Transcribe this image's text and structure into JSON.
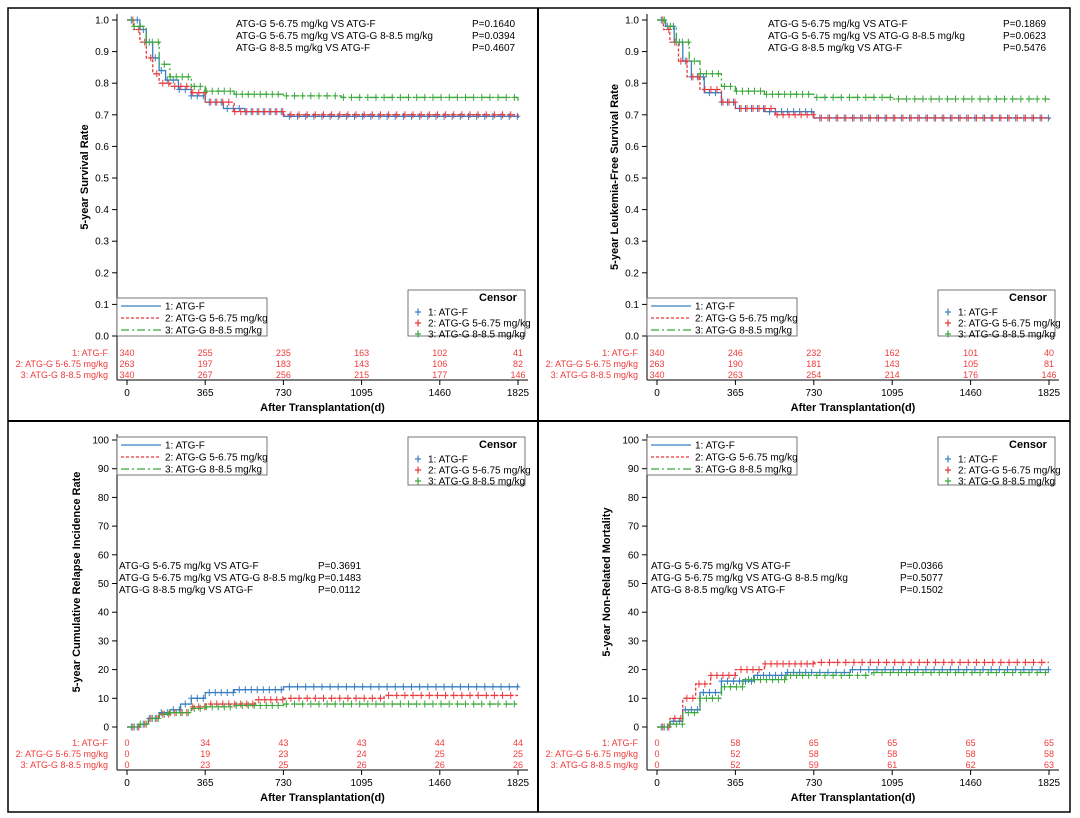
{
  "colors": {
    "ATG-F": "#3a7fc1",
    "ATG-G 5-6.75": "#e8383d",
    "ATG-G 8-8.5": "#3aa83a",
    "risk_table": "#f03a3a"
  },
  "legend_labels": [
    "1: ATG-F",
    "2: ATG-G 5-6.75 mg/kg",
    "3: ATG-G 8-8.5 mg/kg"
  ],
  "censor_title": "Censor",
  "risk_row_labels": [
    "1: ATG-F",
    "2: ATG-G 5-6.75 mg/kg",
    "3: ATG-G 8-8.5 mg/kg"
  ],
  "chart_data": [
    {
      "type": "line",
      "subtype": "kaplan-meier",
      "ylabel": "5-year Survival Rate",
      "xlabel": "After Transplantation(d)",
      "xticks": [
        0,
        365,
        730,
        1095,
        1460,
        1825
      ],
      "yticks": [
        "0.0",
        "0.1",
        "0.2",
        "0.3",
        "0.4",
        "0.5",
        "0.6",
        "0.7",
        "0.8",
        "0.9",
        "1.0"
      ],
      "xlim": [
        0,
        1825
      ],
      "ylim": [
        0,
        1.0
      ],
      "legend": "bottom-left",
      "pvalues": [
        {
          "label": "ATG-G 5-6.75 mg/kg VS ATG-F",
          "p": "P=0.1640"
        },
        {
          "label": "ATG-G 5-6.75 mg/kg VS ATG-G 8-8.5 mg/kg",
          "p": "P=0.0394"
        },
        {
          "label": "ATG-G 8-8.5 mg/kg VS ATG-F",
          "p": "P=0.4607"
        }
      ],
      "risk_table": [
        [
          340,
          255,
          235,
          163,
          102,
          41
        ],
        [
          263,
          197,
          183,
          143,
          106,
          82
        ],
        [
          340,
          267,
          256,
          215,
          177,
          146
        ]
      ],
      "series": [
        {
          "name": "1: ATG-F",
          "points": [
            [
              0,
              1
            ],
            [
              30,
              1
            ],
            [
              60,
              0.97
            ],
            [
              90,
              0.93
            ],
            [
              120,
              0.88
            ],
            [
              150,
              0.84
            ],
            [
              180,
              0.81
            ],
            [
              240,
              0.78
            ],
            [
              300,
              0.76
            ],
            [
              365,
              0.74
            ],
            [
              450,
              0.72
            ],
            [
              550,
              0.71
            ],
            [
              730,
              0.695
            ],
            [
              1825,
              0.69
            ]
          ]
        },
        {
          "name": "2: ATG-G 5-6.75 mg/kg",
          "points": [
            [
              0,
              1
            ],
            [
              30,
              0.97
            ],
            [
              60,
              0.93
            ],
            [
              90,
              0.88
            ],
            [
              120,
              0.83
            ],
            [
              150,
              0.8
            ],
            [
              200,
              0.79
            ],
            [
              300,
              0.77
            ],
            [
              365,
              0.74
            ],
            [
              500,
              0.71
            ],
            [
              730,
              0.7
            ],
            [
              1825,
              0.69
            ]
          ]
        },
        {
          "name": "3: ATG-G 8-8.5 mg/kg",
          "points": [
            [
              0,
              1
            ],
            [
              30,
              0.98
            ],
            [
              90,
              0.93
            ],
            [
              150,
              0.86
            ],
            [
              200,
              0.82
            ],
            [
              300,
              0.79
            ],
            [
              365,
              0.775
            ],
            [
              500,
              0.765
            ],
            [
              730,
              0.76
            ],
            [
              1000,
              0.755
            ],
            [
              1825,
              0.745
            ]
          ]
        }
      ]
    },
    {
      "type": "line",
      "subtype": "kaplan-meier",
      "ylabel": "5-year Leukemia-Free Survival Rate",
      "xlabel": "After Transplantation(d)",
      "xticks": [
        0,
        365,
        730,
        1095,
        1460,
        1825
      ],
      "yticks": [
        "0.0",
        "0.1",
        "0.2",
        "0.3",
        "0.4",
        "0.5",
        "0.6",
        "0.7",
        "0.8",
        "0.9",
        "1.0"
      ],
      "xlim": [
        0,
        1825
      ],
      "ylim": [
        0,
        1.0
      ],
      "legend": "bottom-left",
      "pvalues": [
        {
          "label": "ATG-G 5-6.75 mg/kg VS ATG-F",
          "p": "P=0.1869"
        },
        {
          "label": "ATG-G 5-6.75 mg/kg VS ATG-G 8-8.5 mg/kg",
          "p": "P=0.0623"
        },
        {
          "label": "ATG-G 8-8.5 mg/kg VS ATG-F",
          "p": "P=0.5476"
        }
      ],
      "risk_table": [
        [
          340,
          246,
          232,
          162,
          101,
          40
        ],
        [
          263,
          190,
          181,
          143,
          105,
          81
        ],
        [
          340,
          263,
          254,
          214,
          176,
          146
        ]
      ],
      "series": [
        {
          "name": "1: ATG-F",
          "points": [
            [
              0,
              1
            ],
            [
              40,
              0.98
            ],
            [
              80,
              0.93
            ],
            [
              120,
              0.87
            ],
            [
              160,
              0.82
            ],
            [
              220,
              0.77
            ],
            [
              300,
              0.74
            ],
            [
              365,
              0.72
            ],
            [
              500,
              0.71
            ],
            [
              730,
              0.69
            ],
            [
              1825,
              0.685
            ]
          ]
        },
        {
          "name": "2: ATG-G 5-6.75 mg/kg",
          "points": [
            [
              0,
              1
            ],
            [
              30,
              0.97
            ],
            [
              60,
              0.93
            ],
            [
              100,
              0.87
            ],
            [
              140,
              0.82
            ],
            [
              200,
              0.78
            ],
            [
              300,
              0.74
            ],
            [
              365,
              0.72
            ],
            [
              550,
              0.7
            ],
            [
              730,
              0.69
            ],
            [
              1825,
              0.685
            ]
          ]
        },
        {
          "name": "3: ATG-G 8-8.5 mg/kg",
          "points": [
            [
              0,
              1
            ],
            [
              40,
              0.98
            ],
            [
              90,
              0.93
            ],
            [
              150,
              0.87
            ],
            [
              200,
              0.83
            ],
            [
              300,
              0.79
            ],
            [
              365,
              0.775
            ],
            [
              500,
              0.765
            ],
            [
              730,
              0.755
            ],
            [
              1100,
              0.75
            ],
            [
              1825,
              0.74
            ]
          ]
        }
      ]
    },
    {
      "type": "line",
      "subtype": "cumulative-incidence",
      "ylabel": "5-year Cumulative Relapse Incidence Rate",
      "xlabel": "After Transplantation(d)",
      "xticks": [
        0,
        365,
        730,
        1095,
        1460,
        1825
      ],
      "yticks": [
        "0",
        "10",
        "20",
        "30",
        "40",
        "50",
        "60",
        "70",
        "80",
        "90",
        "100"
      ],
      "xlim": [
        0,
        1825
      ],
      "ylim": [
        0,
        100
      ],
      "legend": "top-left",
      "pvalues": [
        {
          "label": "ATG-G 5-6.75 mg/kg VS ATG-F",
          "p": "P=0.3691"
        },
        {
          "label": "ATG-G 5-6.75 mg/kg VS ATG-G 8-8.5 mg/kg",
          "p": "P=0.1483"
        },
        {
          "label": "ATG-G 8-8.5 mg/kg VS ATG-F",
          "p": "P=0.0112"
        }
      ],
      "risk_table": [
        [
          0,
          34,
          43,
          43,
          44,
          44
        ],
        [
          0,
          19,
          23,
          24,
          25,
          25
        ],
        [
          0,
          23,
          25,
          26,
          26,
          26
        ]
      ],
      "series": [
        {
          "name": "1: ATG-F",
          "points": [
            [
              0,
              0
            ],
            [
              60,
              1
            ],
            [
              100,
              3
            ],
            [
              150,
              5
            ],
            [
              200,
              6
            ],
            [
              250,
              8
            ],
            [
              300,
              10
            ],
            [
              365,
              12
            ],
            [
              500,
              13
            ],
            [
              730,
              14
            ],
            [
              1825,
              14.5
            ]
          ]
        },
        {
          "name": "2: ATG-G 5-6.75 mg/kg",
          "points": [
            [
              0,
              0
            ],
            [
              60,
              1
            ],
            [
              100,
              3
            ],
            [
              150,
              4.5
            ],
            [
              200,
              5
            ],
            [
              300,
              7
            ],
            [
              365,
              8
            ],
            [
              600,
              9.5
            ],
            [
              730,
              10
            ],
            [
              1200,
              11
            ],
            [
              1825,
              11
            ]
          ]
        },
        {
          "name": "3: ATG-G 8-8.5 mg/kg",
          "points": [
            [
              0,
              0
            ],
            [
              60,
              1
            ],
            [
              100,
              3
            ],
            [
              150,
              4.5
            ],
            [
              200,
              5
            ],
            [
              300,
              6.5
            ],
            [
              365,
              7
            ],
            [
              500,
              7.5
            ],
            [
              730,
              8
            ],
            [
              1825,
              8
            ]
          ]
        }
      ]
    },
    {
      "type": "line",
      "subtype": "cumulative-incidence",
      "ylabel": "5-year Non-Related Mortality",
      "xlabel": "After Transplantation(d)",
      "xticks": [
        0,
        365,
        730,
        1095,
        1460,
        1825
      ],
      "yticks": [
        "0",
        "10",
        "20",
        "30",
        "40",
        "50",
        "60",
        "70",
        "80",
        "90",
        "100"
      ],
      "xlim": [
        0,
        1825
      ],
      "ylim": [
        0,
        100
      ],
      "legend": "top-left",
      "pvalues": [
        {
          "label": "ATG-G 5-6.75 mg/kg VS ATG-F",
          "p": "P=0.0366"
        },
        {
          "label": "ATG-G 5-6.75 mg/kg VS ATG-G 8-8.5 mg/kg",
          "p": "P=0.5077"
        },
        {
          "label": "ATG-G 8-8.5 mg/kg VS ATG-F",
          "p": "P=0.1502"
        }
      ],
      "risk_table": [
        [
          0,
          58,
          65,
          65,
          65,
          65
        ],
        [
          0,
          52,
          58,
          58,
          58,
          58
        ],
        [
          0,
          52,
          59,
          61,
          62,
          63
        ]
      ],
      "series": [
        {
          "name": "1: ATG-F",
          "points": [
            [
              0,
              0
            ],
            [
              60,
              2
            ],
            [
              120,
              6
            ],
            [
              200,
              12
            ],
            [
              300,
              16
            ],
            [
              450,
              18
            ],
            [
              600,
              19
            ],
            [
              900,
              20
            ],
            [
              1825,
              20
            ]
          ]
        },
        {
          "name": "2: ATG-G 5-6.75 mg/kg",
          "points": [
            [
              0,
              0
            ],
            [
              60,
              3
            ],
            [
              120,
              10
            ],
            [
              180,
              15
            ],
            [
              250,
              18
            ],
            [
              365,
              20
            ],
            [
              500,
              22
            ],
            [
              730,
              22.5
            ],
            [
              1825,
              22.5
            ]
          ]
        },
        {
          "name": "3: ATG-G 8-8.5 mg/kg",
          "points": [
            [
              0,
              0
            ],
            [
              60,
              1
            ],
            [
              120,
              5
            ],
            [
              200,
              10
            ],
            [
              300,
              14
            ],
            [
              400,
              16.5
            ],
            [
              600,
              18
            ],
            [
              1000,
              19
            ],
            [
              1825,
              19.5
            ]
          ]
        }
      ]
    }
  ]
}
